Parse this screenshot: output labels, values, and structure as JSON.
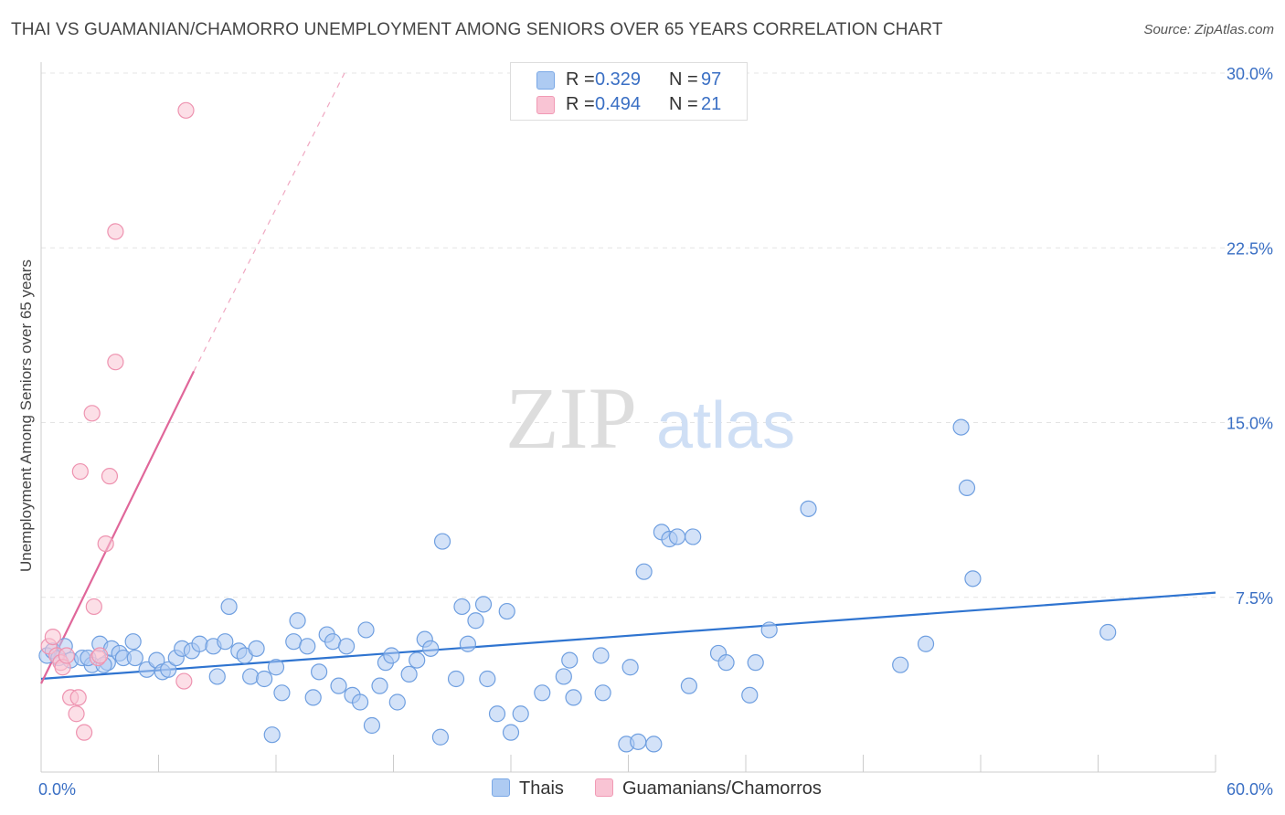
{
  "title": "THAI VS GUAMANIAN/CHAMORRO UNEMPLOYMENT AMONG SENIORS OVER 65 YEARS CORRELATION CHART",
  "source": "Source: ZipAtlas.com",
  "watermark": {
    "zip": "ZIP",
    "atlas": "atlas"
  },
  "legend": {
    "rows": [
      {
        "r_label": "R =",
        "r_value": "0.329",
        "n_label": "N =",
        "n_value": "97",
        "color": "#aecbf2",
        "border": "#7aa8e6"
      },
      {
        "r_label": "R =",
        "r_value": "0.494",
        "n_label": "N =",
        "n_value": "21",
        "color": "#f9c4d4",
        "border": "#f19ab5"
      }
    ]
  },
  "bottom_legend": {
    "series1": "Thais",
    "series2": "Guamanians/Chamorros"
  },
  "chart_data": {
    "type": "scatter",
    "title": "THAI VS GUAMANIAN/CHAMORRO UNEMPLOYMENT AMONG SENIORS OVER 65 YEARS CORRELATION CHART",
    "xlabel": "",
    "ylabel": "Unemployment Among Seniors over 65 years",
    "xlim": [
      0,
      60
    ],
    "ylim": [
      0,
      30
    ],
    "x_tick_labels": [
      {
        "value": 0,
        "label": "0.0%"
      },
      {
        "value": 60,
        "label": "60.0%"
      }
    ],
    "y_tick_labels": [
      {
        "value": 7.5,
        "label": "7.5%"
      },
      {
        "value": 15,
        "label": "15.0%"
      },
      {
        "value": 22.5,
        "label": "22.5%"
      },
      {
        "value": 30,
        "label": "30.0%"
      }
    ],
    "x_minor_ticks": [
      6,
      12,
      18,
      24,
      30,
      36,
      42,
      48,
      54,
      60
    ],
    "grid": true,
    "series": [
      {
        "name": "Thais",
        "color": "#aecbf2",
        "stroke": "#6f9fe0",
        "line_color": "#2f74d0",
        "trend": {
          "x0": 0,
          "y0": 4.0,
          "x1": 60,
          "y1": 7.7
        },
        "points": [
          [
            0.3,
            5.0
          ],
          [
            0.6,
            5.2
          ],
          [
            0.9,
            4.9
          ],
          [
            1.2,
            5.4
          ],
          [
            1.5,
            4.8
          ],
          [
            2.1,
            4.9
          ],
          [
            2.6,
            4.6
          ],
          [
            3.0,
            5.5
          ],
          [
            3.4,
            4.7
          ],
          [
            3.6,
            5.3
          ],
          [
            4.0,
            5.1
          ],
          [
            4.2,
            4.9
          ],
          [
            4.8,
            4.9
          ],
          [
            4.7,
            5.6
          ],
          [
            5.4,
            4.4
          ],
          [
            5.9,
            4.8
          ],
          [
            6.2,
            4.3
          ],
          [
            6.5,
            4.4
          ],
          [
            6.9,
            4.9
          ],
          [
            7.2,
            5.3
          ],
          [
            7.7,
            5.2
          ],
          [
            8.1,
            5.5
          ],
          [
            9.0,
            4.1
          ],
          [
            8.8,
            5.4
          ],
          [
            9.4,
            5.6
          ],
          [
            9.6,
            7.1
          ],
          [
            10.1,
            5.2
          ],
          [
            10.4,
            5.0
          ],
          [
            11.0,
            5.3
          ],
          [
            10.7,
            4.1
          ],
          [
            11.4,
            4.0
          ],
          [
            12.0,
            4.5
          ],
          [
            11.8,
            1.6
          ],
          [
            12.3,
            3.4
          ],
          [
            12.9,
            5.6
          ],
          [
            13.1,
            6.5
          ],
          [
            13.6,
            5.4
          ],
          [
            13.9,
            3.2
          ],
          [
            14.2,
            4.3
          ],
          [
            14.6,
            5.9
          ],
          [
            14.9,
            5.6
          ],
          [
            15.2,
            3.7
          ],
          [
            15.6,
            5.4
          ],
          [
            15.9,
            3.3
          ],
          [
            16.3,
            3.0
          ],
          [
            16.6,
            6.1
          ],
          [
            16.9,
            2.0
          ],
          [
            17.3,
            3.7
          ],
          [
            17.6,
            4.7
          ],
          [
            17.9,
            5.0
          ],
          [
            18.2,
            3.0
          ],
          [
            18.8,
            4.2
          ],
          [
            19.2,
            4.8
          ],
          [
            19.6,
            5.7
          ],
          [
            19.9,
            5.3
          ],
          [
            20.4,
            1.5
          ],
          [
            20.5,
            9.9
          ],
          [
            21.2,
            4.0
          ],
          [
            21.5,
            7.1
          ],
          [
            21.8,
            5.5
          ],
          [
            22.2,
            6.5
          ],
          [
            22.6,
            7.2
          ],
          [
            22.8,
            4.0
          ],
          [
            23.3,
            2.5
          ],
          [
            23.8,
            6.9
          ],
          [
            24.0,
            1.7
          ],
          [
            24.5,
            2.5
          ],
          [
            25.6,
            3.4
          ],
          [
            26.7,
            4.1
          ],
          [
            27.0,
            4.8
          ],
          [
            27.2,
            3.2
          ],
          [
            28.7,
            3.4
          ],
          [
            28.6,
            5.0
          ],
          [
            29.9,
            1.2
          ],
          [
            30.1,
            4.5
          ],
          [
            30.5,
            1.3
          ],
          [
            30.8,
            8.6
          ],
          [
            31.3,
            1.2
          ],
          [
            31.7,
            10.3
          ],
          [
            32.1,
            10.0
          ],
          [
            32.5,
            10.1
          ],
          [
            33.3,
            10.1
          ],
          [
            33.1,
            3.7
          ],
          [
            34.6,
            5.1
          ],
          [
            35.0,
            4.7
          ],
          [
            36.5,
            4.7
          ],
          [
            36.2,
            3.3
          ],
          [
            37.2,
            6.1
          ],
          [
            39.2,
            11.3
          ],
          [
            43.9,
            4.6
          ],
          [
            45.2,
            5.5
          ],
          [
            47.0,
            14.8
          ],
          [
            47.3,
            12.2
          ],
          [
            47.6,
            8.3
          ],
          [
            54.5,
            6.0
          ],
          [
            3.2,
            4.6
          ],
          [
            2.4,
            4.9
          ]
        ]
      },
      {
        "name": "Guamanians/Chamorros",
        "color": "#f9c4d4",
        "stroke": "#ee93b0",
        "line_color": "#e0679a",
        "trend": {
          "x0": 0,
          "y0": 3.8,
          "x1": 7.8,
          "y1": 17.2
        },
        "trend_dashed": {
          "x0": 7.8,
          "y0": 17.2,
          "x1": 15.5,
          "y1": 30.0
        },
        "points": [
          [
            0.4,
            5.4
          ],
          [
            0.6,
            5.8
          ],
          [
            0.8,
            5.0
          ],
          [
            1.0,
            4.7
          ],
          [
            1.1,
            4.5
          ],
          [
            1.3,
            5.0
          ],
          [
            1.5,
            3.2
          ],
          [
            1.8,
            2.5
          ],
          [
            1.9,
            3.2
          ],
          [
            2.0,
            12.9
          ],
          [
            2.2,
            1.7
          ],
          [
            2.6,
            15.4
          ],
          [
            2.7,
            7.1
          ],
          [
            2.9,
            4.9
          ],
          [
            3.0,
            5.0
          ],
          [
            3.8,
            17.6
          ],
          [
            3.3,
            9.8
          ],
          [
            3.5,
            12.7
          ],
          [
            3.8,
            23.2
          ],
          [
            7.4,
            28.4
          ],
          [
            7.3,
            3.9
          ]
        ]
      }
    ]
  }
}
